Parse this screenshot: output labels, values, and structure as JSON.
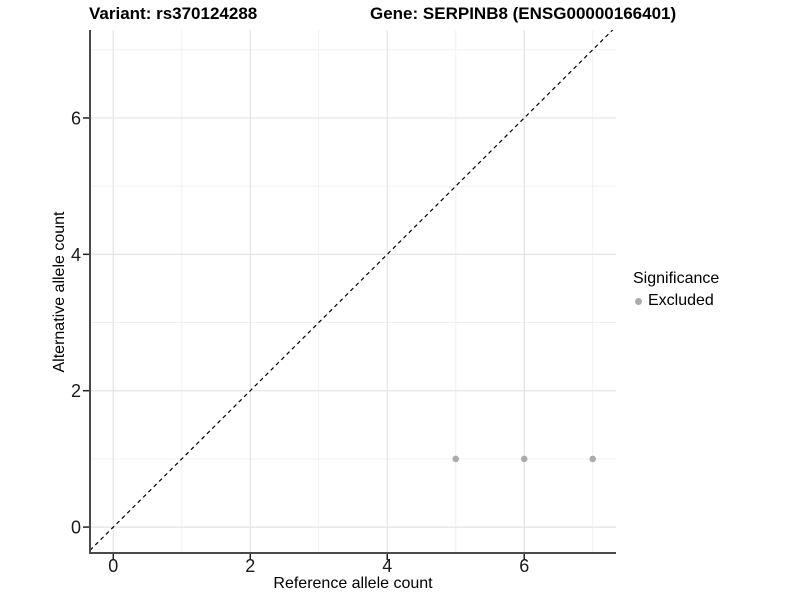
{
  "chart_data": {
    "type": "scatter",
    "title_left": "Variant: rs370124288",
    "title_right": "Gene: SERPINB8 (ENSG00000166401)",
    "xlabel": "Reference allele count",
    "ylabel": "Alternative allele count",
    "xlim": [
      -0.34,
      7.34
    ],
    "ylim": [
      -0.38,
      7.29
    ],
    "xticks": [
      0,
      2,
      4,
      6
    ],
    "yticks": [
      0,
      2,
      4,
      6
    ],
    "minor_xticks": [
      1,
      3,
      5,
      7
    ],
    "minor_yticks": [
      1,
      3,
      5,
      7
    ],
    "grid": true,
    "series": [
      {
        "name": "Excluded",
        "color": "#ababab",
        "points": [
          [
            5,
            1
          ],
          [
            6,
            1
          ],
          [
            7,
            1
          ]
        ]
      }
    ],
    "identity_line": {
      "slope": 1,
      "intercept": 0,
      "style": "dashed",
      "color": "#000000"
    },
    "legend": {
      "title": "Significance",
      "position": "right",
      "items": [
        {
          "label": "Excluded",
          "color": "#ababab"
        }
      ]
    },
    "colors": {
      "background": "#ffffff",
      "grid_major": "#e4e4e4",
      "grid_minor": "#f1f1f1",
      "axis_line": "#4a4a4a",
      "tick_mark": "#222222",
      "tick_label": "#1a1a1a"
    }
  }
}
